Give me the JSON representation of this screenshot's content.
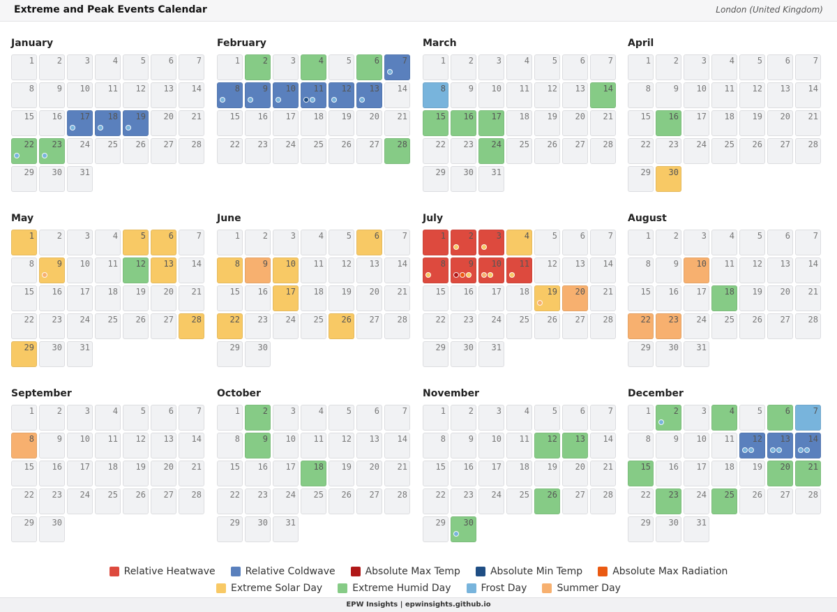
{
  "header": {
    "title": "Extreme and Peak Events Calendar",
    "location": "London (United Kingdom)"
  },
  "colors": {
    "relative_heatwave": "#dd4a3e",
    "relative_coldwave": "#5a80bd",
    "absolute_max_temp": "#b01818",
    "absolute_min_temp": "#1f4e84",
    "absolute_max_radiation": "#ea5a12",
    "extreme_solar_day": "#f8c965",
    "extreme_humid_day": "#86cb86",
    "frost_day": "#78b4dc",
    "summer_day": "#f7b06f",
    "empty_day": "#f1f2f4"
  },
  "months": [
    {
      "name": "January",
      "days": 31,
      "events": {
        "17": "relative_coldwave",
        "18": "relative_coldwave",
        "19": "relative_coldwave",
        "22": "extreme_humid_day",
        "23": "extreme_humid_day"
      },
      "dots": {
        "17": [
          "frost_day"
        ],
        "18": [
          "frost_day"
        ],
        "19": [
          "frost_day"
        ],
        "22": [
          "frost_day"
        ],
        "23": [
          "frost_day"
        ]
      }
    },
    {
      "name": "February",
      "days": 28,
      "events": {
        "2": "extreme_humid_day",
        "4": "extreme_humid_day",
        "6": "extreme_humid_day",
        "7": "relative_coldwave",
        "8": "relative_coldwave",
        "9": "relative_coldwave",
        "10": "relative_coldwave",
        "11": "relative_coldwave",
        "12": "relative_coldwave",
        "13": "relative_coldwave",
        "28": "extreme_humid_day"
      },
      "dots": {
        "7": [
          "frost_day"
        ],
        "8": [
          "frost_day"
        ],
        "9": [
          "frost_day"
        ],
        "10": [
          "frost_day"
        ],
        "11": [
          "absolute_min_temp",
          "frost_day"
        ],
        "12": [
          "frost_day"
        ],
        "13": [
          "frost_day"
        ]
      }
    },
    {
      "name": "March",
      "days": 31,
      "events": {
        "8": "frost_day",
        "14": "extreme_humid_day",
        "15": "extreme_humid_day",
        "16": "extreme_humid_day",
        "17": "extreme_humid_day",
        "24": "extreme_humid_day"
      },
      "dots": {}
    },
    {
      "name": "April",
      "days": 30,
      "events": {
        "16": "extreme_humid_day",
        "30": "extreme_solar_day"
      },
      "dots": {}
    },
    {
      "name": "May",
      "days": 31,
      "events": {
        "1": "extreme_solar_day",
        "5": "extreme_solar_day",
        "6": "extreme_solar_day",
        "9": "extreme_solar_day",
        "12": "extreme_humid_day",
        "13": "extreme_solar_day",
        "28": "extreme_solar_day",
        "29": "extreme_solar_day"
      },
      "dots": {
        "9": [
          "summer_day"
        ]
      }
    },
    {
      "name": "June",
      "days": 30,
      "events": {
        "6": "extreme_solar_day",
        "8": "extreme_solar_day",
        "9": "summer_day",
        "10": "extreme_solar_day",
        "17": "extreme_solar_day",
        "22": "extreme_solar_day",
        "26": "extreme_solar_day"
      },
      "dots": {}
    },
    {
      "name": "July",
      "days": 31,
      "events": {
        "1": "relative_heatwave",
        "2": "relative_heatwave",
        "3": "relative_heatwave",
        "4": "extreme_solar_day",
        "8": "relative_heatwave",
        "9": "relative_heatwave",
        "10": "relative_heatwave",
        "11": "relative_heatwave",
        "19": "extreme_solar_day",
        "20": "summer_day"
      },
      "dots": {
        "2": [
          "extreme_solar_day"
        ],
        "3": [
          "extreme_solar_day"
        ],
        "8": [
          "extreme_solar_day"
        ],
        "9": [
          "absolute_max_temp",
          "absolute_max_radiation",
          "extreme_solar_day"
        ],
        "10": [
          "summer_day",
          "extreme_solar_day"
        ],
        "11": [
          "extreme_solar_day"
        ],
        "19": [
          "summer_day"
        ]
      }
    },
    {
      "name": "August",
      "days": 31,
      "events": {
        "10": "summer_day",
        "18": "extreme_humid_day",
        "22": "summer_day",
        "23": "summer_day"
      },
      "dots": {}
    },
    {
      "name": "September",
      "days": 30,
      "events": {
        "8": "summer_day"
      },
      "dots": {}
    },
    {
      "name": "October",
      "days": 31,
      "events": {
        "2": "extreme_humid_day",
        "9": "extreme_humid_day",
        "18": "extreme_humid_day"
      },
      "dots": {}
    },
    {
      "name": "November",
      "days": 30,
      "events": {
        "12": "extreme_humid_day",
        "13": "extreme_humid_day",
        "26": "extreme_humid_day",
        "30": "extreme_humid_day"
      },
      "dots": {
        "30": [
          "frost_day"
        ]
      }
    },
    {
      "name": "December",
      "days": 31,
      "events": {
        "2": "extreme_humid_day",
        "4": "extreme_humid_day",
        "6": "extreme_humid_day",
        "7": "frost_day",
        "12": "relative_coldwave",
        "13": "relative_coldwave",
        "14": "relative_coldwave",
        "15": "extreme_humid_day",
        "20": "extreme_humid_day",
        "21": "extreme_humid_day",
        "23": "extreme_humid_day",
        "25": "extreme_humid_day"
      },
      "dots": {
        "2": [
          "frost_day"
        ],
        "12": [
          "frost_day",
          "frost_day"
        ],
        "13": [
          "frost_day",
          "frost_day"
        ],
        "14": [
          "frost_day",
          "frost_day"
        ]
      }
    }
  ],
  "legend": [
    {
      "key": "relative_heatwave",
      "label": "Relative Heatwave"
    },
    {
      "key": "relative_coldwave",
      "label": "Relative Coldwave"
    },
    {
      "key": "absolute_max_temp",
      "label": "Absolute Max Temp"
    },
    {
      "key": "absolute_min_temp",
      "label": "Absolute Min Temp"
    },
    {
      "key": "absolute_max_radiation",
      "label": "Absolute Max Radiation"
    },
    {
      "key": "extreme_solar_day",
      "label": "Extreme Solar Day"
    },
    {
      "key": "extreme_humid_day",
      "label": "Extreme Humid Day"
    },
    {
      "key": "frost_day",
      "label": "Frost Day"
    },
    {
      "key": "summer_day",
      "label": "Summer Day"
    }
  ],
  "footer": "EPW Insights | epwinsights.github.io"
}
